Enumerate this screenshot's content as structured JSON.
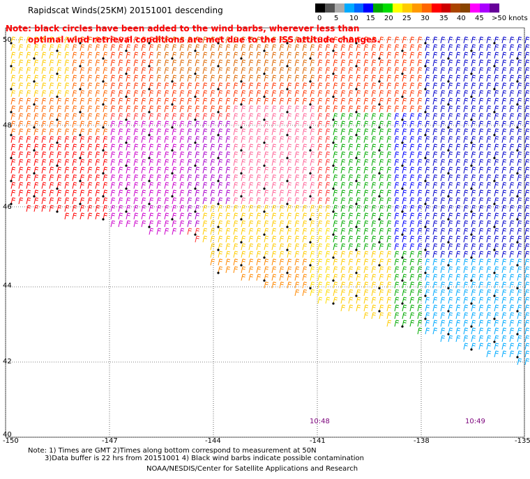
{
  "header": {
    "title": "Rapidscat Winds(25KM) 20151001 descending",
    "note_line1": "Note: black circles have been added to the wind barbs, wherever less than",
    "note_line2": "optimal wind retrieval conditions are met due to the ISS attitude changes."
  },
  "legend": {
    "colors": [
      "#000000",
      "#555555",
      "#aaaaaa",
      "#00aaff",
      "#0066ff",
      "#0000ff",
      "#00aa00",
      "#00dd00",
      "#ffff00",
      "#ffcc00",
      "#ff9900",
      "#ff6600",
      "#ff0000",
      "#cc0000",
      "#aa4400",
      "#884400",
      "#ff00ff",
      "#aa00ff",
      "#660099"
    ],
    "labels": [
      "0",
      "5",
      "10",
      "15",
      "20",
      "25",
      "30",
      "35",
      "40",
      "45",
      ">50 knots"
    ]
  },
  "axes": {
    "longitudes": [
      "-150",
      "-147",
      "-144",
      "-141",
      "-138",
      "-135"
    ],
    "latitudes": [
      "50",
      "48",
      "46",
      "44",
      "42",
      "40"
    ]
  },
  "times": [
    "10:48",
    "10:49"
  ],
  "footer": {
    "line1": "Note: 1) Times are GMT 2)Times along bottom correspond to measurement at 50N",
    "line2": "3)Data buffer is 22 hrs from 20151001 4) Black wind barbs indicate possible contamination",
    "line3": "NOAA/NESDIS/Center for Satellite Applications and Research"
  }
}
